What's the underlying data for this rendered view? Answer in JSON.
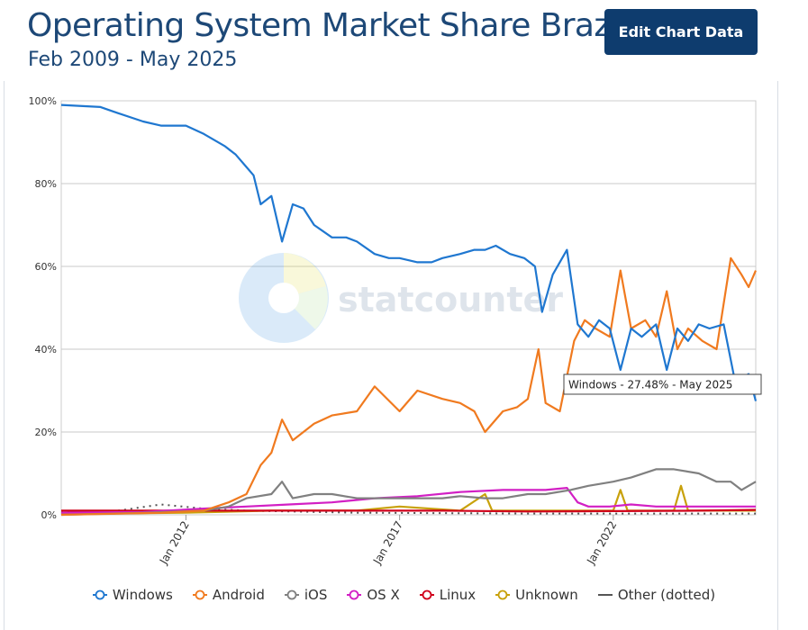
{
  "header": {
    "title": "Operating System Market Share Brazil",
    "subtitle": "Feb 2009 - May 2025",
    "edit_button": "Edit Chart Data"
  },
  "watermark": "statcounter",
  "tooltip": "Windows - 27.48% - May 2025",
  "chart_data": {
    "type": "line",
    "title": "Operating System Market Share Brazil",
    "subtitle": "Feb 2009 - May 2025",
    "xlabel": "",
    "ylabel": "",
    "ylim": [
      0,
      100
    ],
    "xlim": [
      "2009-02",
      "2025-05"
    ],
    "y_ticks": [
      "0%",
      "20%",
      "40%",
      "60%",
      "80%",
      "100%"
    ],
    "x_ticks": [
      "Jan 2012",
      "Jan 2017",
      "Jan 2022"
    ],
    "grid": true,
    "legend_position": "bottom",
    "series": [
      {
        "name": "Windows",
        "color": "#1f77d0",
        "marker": "circle",
        "points": [
          [
            "2009-02",
            99
          ],
          [
            "2010-01",
            98.5
          ],
          [
            "2010-06",
            97
          ],
          [
            "2011-01",
            95
          ],
          [
            "2011-06",
            94
          ],
          [
            "2012-01",
            94
          ],
          [
            "2012-06",
            92
          ],
          [
            "2012-12",
            89
          ],
          [
            "2013-03",
            87
          ],
          [
            "2013-06",
            84
          ],
          [
            "2013-08",
            82
          ],
          [
            "2013-10",
            75
          ],
          [
            "2014-01",
            77
          ],
          [
            "2014-04",
            66
          ],
          [
            "2014-07",
            75
          ],
          [
            "2014-10",
            74
          ],
          [
            "2015-01",
            70
          ],
          [
            "2015-06",
            67
          ],
          [
            "2015-10",
            67
          ],
          [
            "2016-01",
            66
          ],
          [
            "2016-06",
            63
          ],
          [
            "2016-10",
            62
          ],
          [
            "2017-01",
            62
          ],
          [
            "2017-06",
            61
          ],
          [
            "2017-10",
            61
          ],
          [
            "2018-01",
            62
          ],
          [
            "2018-06",
            63
          ],
          [
            "2018-10",
            64
          ],
          [
            "2019-01",
            64
          ],
          [
            "2019-04",
            65
          ],
          [
            "2019-08",
            63
          ],
          [
            "2019-12",
            62
          ],
          [
            "2020-03",
            60
          ],
          [
            "2020-05",
            49
          ],
          [
            "2020-08",
            58
          ],
          [
            "2020-12",
            64
          ],
          [
            "2021-03",
            46
          ],
          [
            "2021-06",
            43
          ],
          [
            "2021-09",
            47
          ],
          [
            "2021-12",
            45
          ],
          [
            "2022-03",
            35
          ],
          [
            "2022-06",
            45
          ],
          [
            "2022-09",
            43
          ],
          [
            "2023-01",
            46
          ],
          [
            "2023-04",
            35
          ],
          [
            "2023-07",
            45
          ],
          [
            "2023-10",
            42
          ],
          [
            "2024-01",
            46
          ],
          [
            "2024-04",
            45
          ],
          [
            "2024-08",
            46
          ],
          [
            "2024-11",
            33
          ],
          [
            "2025-01",
            33
          ],
          [
            "2025-03",
            34
          ],
          [
            "2025-05",
            27.48
          ]
        ]
      },
      {
        "name": "Android",
        "color": "#f07a1f",
        "marker": "circle",
        "points": [
          [
            "2009-02",
            0
          ],
          [
            "2011-06",
            0.5
          ],
          [
            "2012-06",
            1
          ],
          [
            "2013-01",
            3
          ],
          [
            "2013-06",
            5
          ],
          [
            "2013-10",
            12
          ],
          [
            "2014-01",
            15
          ],
          [
            "2014-04",
            23
          ],
          [
            "2014-07",
            18
          ],
          [
            "2015-01",
            22
          ],
          [
            "2015-06",
            24
          ],
          [
            "2016-01",
            25
          ],
          [
            "2016-06",
            31
          ],
          [
            "2017-01",
            25
          ],
          [
            "2017-06",
            30
          ],
          [
            "2018-01",
            28
          ],
          [
            "2018-06",
            27
          ],
          [
            "2018-10",
            25
          ],
          [
            "2019-01",
            20
          ],
          [
            "2019-06",
            25
          ],
          [
            "2019-10",
            26
          ],
          [
            "2020-01",
            28
          ],
          [
            "2020-04",
            40
          ],
          [
            "2020-06",
            27
          ],
          [
            "2020-10",
            25
          ],
          [
            "2021-02",
            42
          ],
          [
            "2021-05",
            47
          ],
          [
            "2021-08",
            45
          ],
          [
            "2021-12",
            43
          ],
          [
            "2022-03",
            59
          ],
          [
            "2022-06",
            45
          ],
          [
            "2022-10",
            47
          ],
          [
            "2023-01",
            43
          ],
          [
            "2023-04",
            54
          ],
          [
            "2023-07",
            40
          ],
          [
            "2023-10",
            45
          ],
          [
            "2024-02",
            42
          ],
          [
            "2024-06",
            40
          ],
          [
            "2024-10",
            62
          ],
          [
            "2025-01",
            58
          ],
          [
            "2025-03",
            55
          ],
          [
            "2025-05",
            59
          ]
        ]
      },
      {
        "name": "iOS",
        "color": "#808080",
        "marker": "circle",
        "points": [
          [
            "2009-02",
            0
          ],
          [
            "2011-01",
            0.5
          ],
          [
            "2012-06",
            1
          ],
          [
            "2013-01",
            2
          ],
          [
            "2013-06",
            4
          ],
          [
            "2014-01",
            5
          ],
          [
            "2014-04",
            8
          ],
          [
            "2014-07",
            4
          ],
          [
            "2015-01",
            5
          ],
          [
            "2015-06",
            5
          ],
          [
            "2016-01",
            4
          ],
          [
            "2016-06",
            4
          ],
          [
            "2017-01",
            4
          ],
          [
            "2017-06",
            4
          ],
          [
            "2018-01",
            4
          ],
          [
            "2018-06",
            4.5
          ],
          [
            "2019-01",
            4
          ],
          [
            "2019-06",
            4
          ],
          [
            "2020-01",
            5
          ],
          [
            "2020-06",
            5
          ],
          [
            "2021-01",
            6
          ],
          [
            "2021-06",
            7
          ],
          [
            "2022-01",
            8
          ],
          [
            "2022-06",
            9
          ],
          [
            "2023-01",
            11
          ],
          [
            "2023-06",
            11
          ],
          [
            "2024-01",
            10
          ],
          [
            "2024-06",
            8
          ],
          [
            "2024-10",
            8
          ],
          [
            "2025-01",
            6
          ],
          [
            "2025-05",
            8
          ]
        ]
      },
      {
        "name": "OS X",
        "color": "#d21fc4",
        "marker": "circle",
        "points": [
          [
            "2009-02",
            0.5
          ],
          [
            "2011-01",
            0.7
          ],
          [
            "2012-06",
            1.5
          ],
          [
            "2013-06",
            2
          ],
          [
            "2014-06",
            2.5
          ],
          [
            "2015-06",
            3
          ],
          [
            "2016-06",
            4
          ],
          [
            "2017-06",
            4.5
          ],
          [
            "2018-06",
            5.5
          ],
          [
            "2019-06",
            6
          ],
          [
            "2020-06",
            6
          ],
          [
            "2020-12",
            6.5
          ],
          [
            "2021-03",
            3
          ],
          [
            "2021-06",
            2
          ],
          [
            "2021-12",
            2
          ],
          [
            "2022-06",
            2.5
          ],
          [
            "2023-01",
            2
          ],
          [
            "2023-06",
            2
          ],
          [
            "2024-01",
            2
          ],
          [
            "2024-06",
            2
          ],
          [
            "2025-05",
            2
          ]
        ]
      },
      {
        "name": "Linux",
        "color": "#d0021b",
        "marker": "circle",
        "points": [
          [
            "2009-02",
            1
          ],
          [
            "2010-06",
            1
          ],
          [
            "2012-01",
            1
          ],
          [
            "2014-01",
            1
          ],
          [
            "2016-01",
            1
          ],
          [
            "2018-01",
            1
          ],
          [
            "2020-01",
            0.8
          ],
          [
            "2022-01",
            0.9
          ],
          [
            "2024-01",
            1
          ],
          [
            "2025-05",
            1.2
          ]
        ]
      },
      {
        "name": "Unknown",
        "color": "#c8a10b",
        "marker": "circle",
        "points": [
          [
            "2009-02",
            0.2
          ],
          [
            "2012-01",
            0.5
          ],
          [
            "2014-01",
            1
          ],
          [
            "2016-01",
            1
          ],
          [
            "2017-01",
            2
          ],
          [
            "2018-06",
            1
          ],
          [
            "2019-01",
            5
          ],
          [
            "2019-03",
            1
          ],
          [
            "2019-06",
            1
          ],
          [
            "2020-01",
            1
          ],
          [
            "2021-01",
            1
          ],
          [
            "2022-01",
            1
          ],
          [
            "2022-03",
            6
          ],
          [
            "2022-05",
            1
          ],
          [
            "2023-06",
            1
          ],
          [
            "2023-08",
            7
          ],
          [
            "2023-10",
            1
          ],
          [
            "2024-06",
            1
          ],
          [
            "2025-05",
            1
          ]
        ]
      },
      {
        "name": "Other (dotted)",
        "color": "#555555",
        "marker": "dash",
        "points": [
          [
            "2009-02",
            0.5
          ],
          [
            "2010-06",
            1
          ],
          [
            "2011-06",
            2.5
          ],
          [
            "2012-06",
            1.5
          ],
          [
            "2013-06",
            1
          ],
          [
            "2016-01",
            0.5
          ],
          [
            "2020-01",
            0.3
          ],
          [
            "2025-05",
            0.3
          ]
        ]
      }
    ]
  }
}
